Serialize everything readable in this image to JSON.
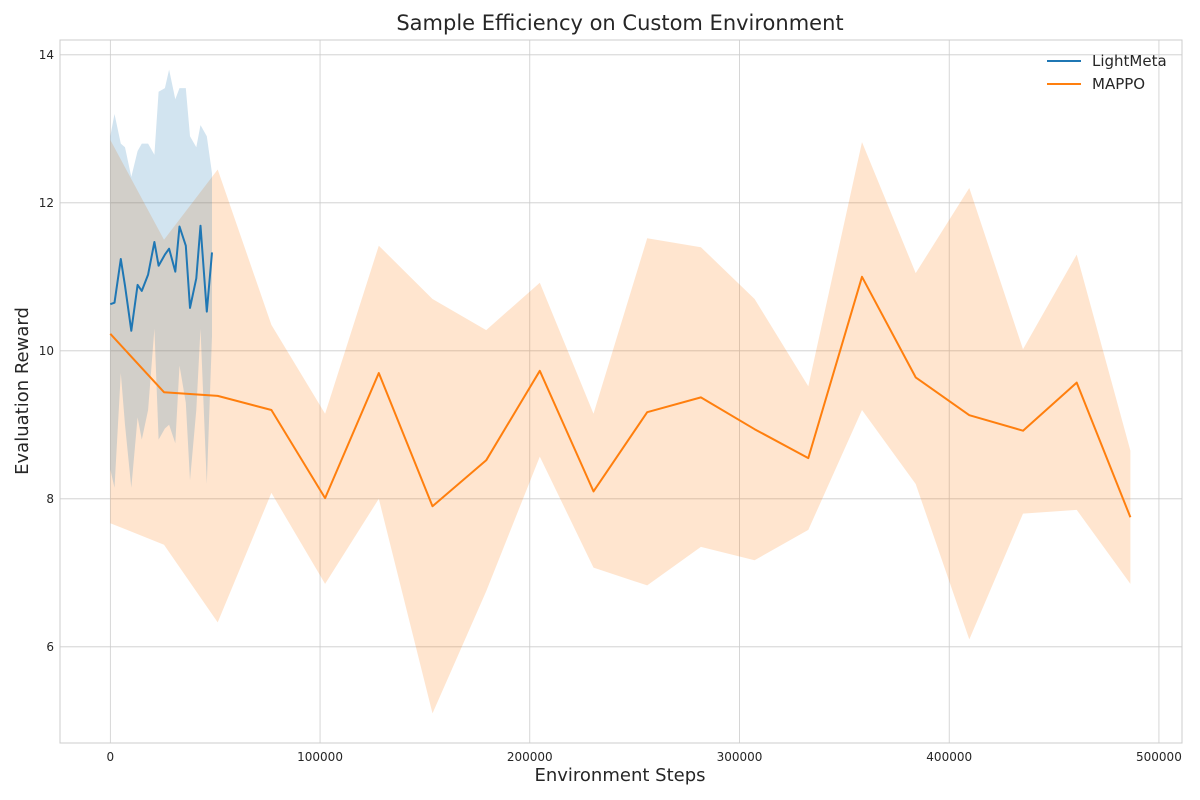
{
  "chart_data": {
    "type": "line",
    "title": "Sample Efficiency on Custom Environment",
    "xlabel": "Environment Steps",
    "ylabel": "Evaluation Reward",
    "xlim": [
      -24000,
      511000
    ],
    "ylim": [
      4.7,
      14.2
    ],
    "xticks": [
      0,
      100000,
      200000,
      300000,
      400000,
      500000
    ],
    "yticks": [
      6,
      8,
      10,
      12,
      14
    ],
    "grid": true,
    "legend_position": "top-right",
    "series": [
      {
        "name": "LightMeta",
        "color": "#1f77b4",
        "x": [
          0,
          2000,
          5000,
          7000,
          10000,
          13000,
          15000,
          18000,
          21000,
          23000,
          26000,
          28000,
          31000,
          33000,
          36000,
          38000,
          41000,
          43000,
          46000,
          48500
        ],
        "y": [
          10.63,
          10.65,
          11.24,
          10.88,
          10.27,
          10.89,
          10.81,
          11.03,
          11.47,
          11.15,
          11.3,
          11.38,
          11.07,
          11.68,
          11.42,
          10.58,
          10.98,
          11.69,
          10.53,
          11.33
        ],
        "upper": [
          12.9,
          13.2,
          12.8,
          12.75,
          12.35,
          12.7,
          12.8,
          12.8,
          12.65,
          13.5,
          13.55,
          13.8,
          13.4,
          13.55,
          13.55,
          12.9,
          12.75,
          13.05,
          12.9,
          12.4
        ],
        "lower": [
          8.4,
          8.15,
          9.7,
          9.0,
          8.15,
          9.1,
          8.8,
          9.2,
          10.3,
          8.8,
          8.95,
          9.0,
          8.75,
          9.8,
          9.3,
          8.25,
          9.2,
          10.3,
          8.2,
          10.2
        ]
      },
      {
        "name": "MAPPO",
        "color": "#ff7f0e",
        "x": [
          0,
          25600,
          51200,
          76800,
          102400,
          128000,
          153600,
          179200,
          204800,
          230400,
          256000,
          281600,
          307200,
          332800,
          358400,
          384000,
          409600,
          435200,
          460800,
          486400
        ],
        "y": [
          10.23,
          9.44,
          9.39,
          9.2,
          8.01,
          9.7,
          7.9,
          8.52,
          9.73,
          8.1,
          9.17,
          9.37,
          8.94,
          8.55,
          11.0,
          9.64,
          9.13,
          8.92,
          9.57,
          7.75
        ],
        "upper": [
          12.85,
          11.5,
          12.45,
          10.35,
          9.15,
          11.42,
          10.7,
          10.28,
          10.92,
          9.15,
          11.52,
          11.4,
          10.7,
          9.52,
          12.82,
          11.05,
          12.2,
          10.02,
          11.3,
          8.65
        ],
        "lower": [
          7.67,
          7.38,
          6.33,
          8.08,
          6.85,
          8.0,
          5.1,
          6.75,
          8.57,
          7.07,
          6.83,
          7.35,
          7.17,
          7.58,
          9.2,
          8.2,
          6.1,
          7.8,
          7.85,
          6.85
        ]
      }
    ]
  }
}
